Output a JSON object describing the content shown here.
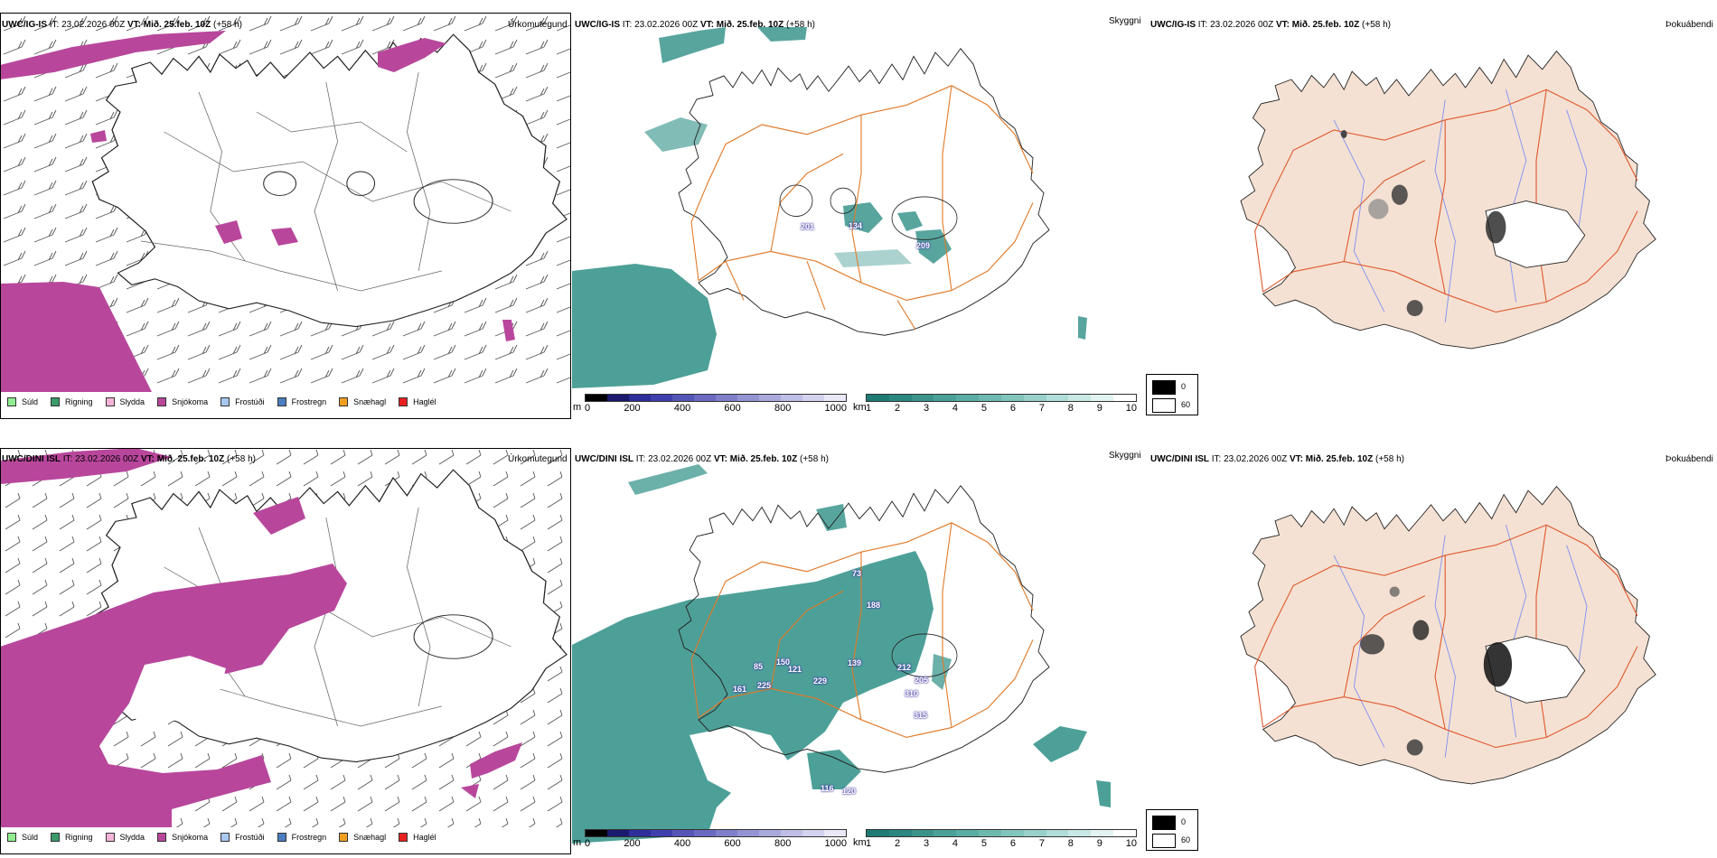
{
  "rows": [
    {
      "model": "UWC/IG-IS",
      "it_label": "IT:",
      "it_value": "23.02.2026 00Z",
      "vt_label": "VT:",
      "vt_value": "Mið. 25.feb. 10Z",
      "lead": "(+58 h)",
      "panels": {
        "precip": {
          "title": "Úrkomutegund"
        },
        "cloud": {
          "title": "Skyggni",
          "labels": [
            "201",
            "134",
            "209"
          ]
        },
        "fog": {
          "title": "Þokuábendi"
        }
      }
    },
    {
      "model": "UWC/DINI ISL",
      "it_label": "IT:",
      "it_value": "23.02.2026 00Z",
      "vt_label": "VT:",
      "vt_value": "Mið. 25.feb. 10Z",
      "lead": "(+58 h)",
      "panels": {
        "precip": {
          "title": "Úrkomutegund"
        },
        "cloud": {
          "title": "Skyggni",
          "labels": [
            "73",
            "188",
            "150",
            "85",
            "121",
            "139",
            "212",
            "205",
            "161",
            "225",
            "229",
            "310",
            "315",
            "116",
            "120"
          ]
        },
        "fog": {
          "title": "Þokuábendi"
        }
      }
    }
  ],
  "precip_legend": [
    {
      "label": "Súld",
      "color": "#90ee90"
    },
    {
      "label": "Rigning",
      "color": "#3c9a6a"
    },
    {
      "label": "Slydda",
      "color": "#f4b4d8"
    },
    {
      "label": "Snjókoma",
      "color": "#b8479c"
    },
    {
      "label": "Frostúði",
      "color": "#a8c8f0"
    },
    {
      "label": "Frostregn",
      "color": "#4a7ec0"
    },
    {
      "label": "Snæhagl",
      "color": "#f0a020"
    },
    {
      "label": "Haglél",
      "color": "#e82020"
    }
  ],
  "ceiling_bar": {
    "unit": "m",
    "ticks": [
      "0",
      "200",
      "400",
      "600",
      "800",
      "1000"
    ],
    "colors": [
      "#000000",
      "#1a1a6e",
      "#2e2e9a",
      "#3f3fae",
      "#5555b8",
      "#6a6ac2",
      "#7f7fcb",
      "#9494d4",
      "#a9a9dd",
      "#bebee6",
      "#d3d3ef",
      "#e8e8f7"
    ]
  },
  "visibility_bar": {
    "unit": "km",
    "ticks": [
      "1",
      "2",
      "3",
      "4",
      "5",
      "6",
      "7",
      "8",
      "9",
      "10"
    ],
    "colors": [
      "#1f7a73",
      "#2b8780",
      "#3a948c",
      "#4aa198",
      "#5aada4",
      "#6db9b0",
      "#82c5bd",
      "#98d1ca",
      "#b0ddd7",
      "#c8e8e4",
      "#e2f3f1",
      "#ffffff"
    ]
  },
  "fog_legend": {
    "items": [
      {
        "label": "0",
        "color": "#000000"
      },
      {
        "label": "60",
        "color": "#ffffff"
      }
    ]
  },
  "colors": {
    "snow": "#b8479c",
    "cloud": "#2e8f86",
    "terrain": "#f4e1d3",
    "roads": "#e07a2a",
    "rivers": "#7f8ff0"
  }
}
